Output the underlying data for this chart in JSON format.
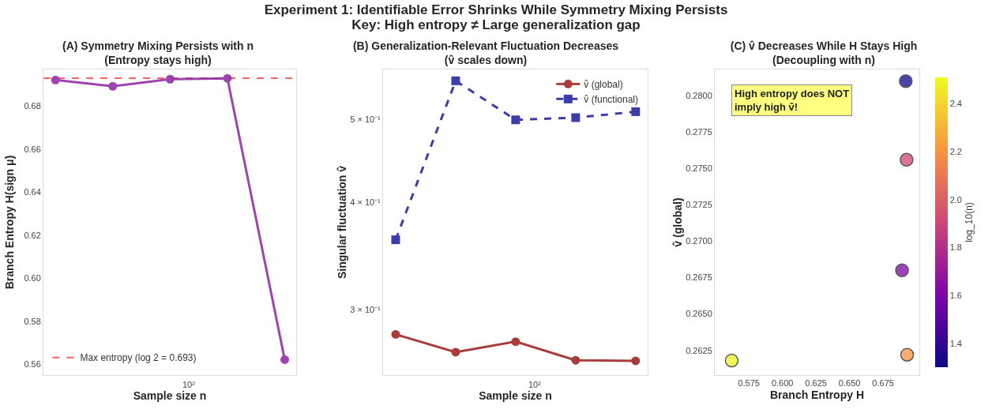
{
  "chart_data": [
    {
      "type": "other",
      "title": "Experiment 1: Identifiable Error Shrinks While Symmetry Mixing Persists\nKey: High entropy ≠ Large generalization gap"
    },
    {
      "type": "line",
      "title": "(A) Symmetry Mixing Persists with n\n(Entropy stays high)",
      "xlabel": "Sample size n",
      "ylabel": "Branch Entropy H(sign μ)",
      "categories": [
        null,
        null,
        null,
        null,
        null
      ],
      "annotations": [
        "10²"
      ],
      "series": [
        {
          "color": "#8e24a0",
          "values": [
            0.6921,
            0.6892,
            0.6925,
            0.6929,
            0.5622
          ]
        }
      ],
      "ylim": [
        0.555,
        0.697
      ],
      "yticks": [
        0.56,
        0.58,
        {
          "value": 0.6,
          "label": "0.60"
        },
        0.62,
        0.64,
        0.66,
        0.68
      ],
      "ref_lines": [
        {
          "axis": "y",
          "value": 0.693,
          "label": "Max entropy (log 2 = 0.693)",
          "color": "#ff3b3b",
          "line_style": "dashed"
        }
      ],
      "marker": "circle",
      "grid": false,
      "legend": "bottom left"
    },
    {
      "type": "line",
      "title": "(B) Generalization-Relevant Fluctuation Decreases\n(v̂ scales down)",
      "xlabel": "Sample size n",
      "ylabel": "Singular fluctuation v̂",
      "categories": [
        null,
        null,
        null,
        null,
        null
      ],
      "annotations": [
        "10²"
      ],
      "series": [
        {
          "name": "v̂ (global)",
          "color": "#9b1c1c",
          "values": [
            0.281,
            0.268,
            0.2756,
            0.2622,
            0.2618
          ],
          "marker": "circle",
          "line_style": "solid"
        },
        {
          "name": "v̂ (functional)",
          "color": "#1c1c9b",
          "values": [
            0.362,
            0.554,
            0.499,
            0.502,
            0.51
          ],
          "marker": "square",
          "line_style": "dashed"
        }
      ],
      "log": "y",
      "ylim": [
        0.252,
        0.571
      ],
      "yticks": [
        {
          "value": 0.3,
          "label": "3 × 10⁻¹"
        },
        {
          "value": 0.4,
          "label": "4 × 10⁻¹"
        },
        {
          "value": 0.5,
          "label": "5 × 10⁻¹"
        }
      ],
      "grid": false,
      "legend": "top right"
    },
    {
      "type": "scatter",
      "title": "(C) v̂ Decreases While H Stays High\n(Decoupling with n)",
      "xlabel": "Branch Entropy H",
      "ylabel": "v̂ (global)",
      "clabel": "log_10(n)",
      "x": [
        0.6919,
        0.6891,
        0.6925,
        0.6929,
        0.5622
      ],
      "values": [
        0.281,
        0.268,
        0.2756,
        0.2622,
        0.2618
      ],
      "cvalues": [
        1.3,
        1.6,
        1.9,
        2.2,
        2.5
      ],
      "xlim": [
        0.5496,
        0.702
      ],
      "xticks": [
        0.575,
        {
          "value": 0.6,
          "label": "0.600"
        },
        0.625,
        {
          "value": 0.65,
          "label": "0.650"
        },
        0.675
      ],
      "ylim": [
        0.2608,
        0.2818
      ],
      "yticks": [
        0.2625,
        {
          "value": 0.265,
          "label": "0.2650"
        },
        0.2675,
        {
          "value": 0.27,
          "label": "0.2700"
        },
        0.2725,
        {
          "value": 0.275,
          "label": "0.2750"
        },
        0.2775,
        {
          "value": 0.28,
          "label": "0.2800"
        }
      ],
      "clim": [
        1.3,
        2.51
      ],
      "cticks": [
        1.4,
        1.6,
        1.8,
        {
          "value": 2,
          "label": "2.0"
        },
        2.2,
        2.4
      ],
      "annotations": [
        "High entropy does NOT\nimply high v̂!"
      ],
      "marker": "circle",
      "grid": false,
      "legend": false
    }
  ]
}
